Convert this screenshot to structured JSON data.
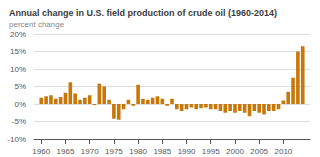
{
  "chart_data": {
    "type": "bar",
    "title": "Annual change in U.S. field production of crude oil (1960-2014)",
    "ylabel": "percent change",
    "color": "#c8780a",
    "x": [
      1960,
      1961,
      1962,
      1963,
      1964,
      1965,
      1966,
      1967,
      1968,
      1969,
      1970,
      1971,
      1972,
      1973,
      1974,
      1975,
      1976,
      1977,
      1978,
      1979,
      1980,
      1981,
      1982,
      1983,
      1984,
      1985,
      1986,
      1987,
      1988,
      1989,
      1990,
      1991,
      1992,
      1993,
      1994,
      1995,
      1996,
      1997,
      1998,
      1999,
      2000,
      2001,
      2002,
      2003,
      2004,
      2005,
      2006,
      2007,
      2008,
      2009,
      2010,
      2011,
      2012,
      2013,
      2014
    ],
    "values": [
      1.8,
      2.2,
      2.5,
      1.5,
      2.0,
      3.2,
      6.2,
      3.0,
      1.2,
      1.8,
      2.5,
      -0.3,
      5.8,
      5.0,
      1.2,
      -4.2,
      -4.5,
      -1.5,
      1.2,
      -0.5,
      5.5,
      1.5,
      1.2,
      1.8,
      2.2,
      1.5,
      -0.5,
      1.5,
      -1.5,
      -2.0,
      -1.5,
      -1.0,
      -1.5,
      -1.2,
      -1.0,
      -1.5,
      -1.5,
      -2.0,
      -2.5,
      -2.0,
      -2.5,
      -2.0,
      -2.5,
      -3.5,
      -2.0,
      -2.5,
      -3.0,
      -2.0,
      -2.0,
      -1.5,
      1.0,
      3.5,
      7.5,
      15.0,
      16.5
    ],
    "xlim": [
      1958.5,
      2015.5
    ],
    "xticks": [
      1960,
      1965,
      1970,
      1975,
      1980,
      1985,
      1990,
      1995,
      2000,
      2005,
      2010
    ],
    "ylim": [
      -10,
      20
    ],
    "yticks": [
      {
        "value": -10,
        "label": "-10%"
      },
      {
        "value": -5,
        "label": "-5%"
      },
      {
        "value": 0,
        "label": "0%"
      },
      {
        "value": 5,
        "label": "5%"
      },
      {
        "value": 10,
        "label": "10%"
      },
      {
        "value": 15,
        "label": "15%"
      },
      {
        "value": 20,
        "label": "20%"
      }
    ],
    "grid": true
  }
}
